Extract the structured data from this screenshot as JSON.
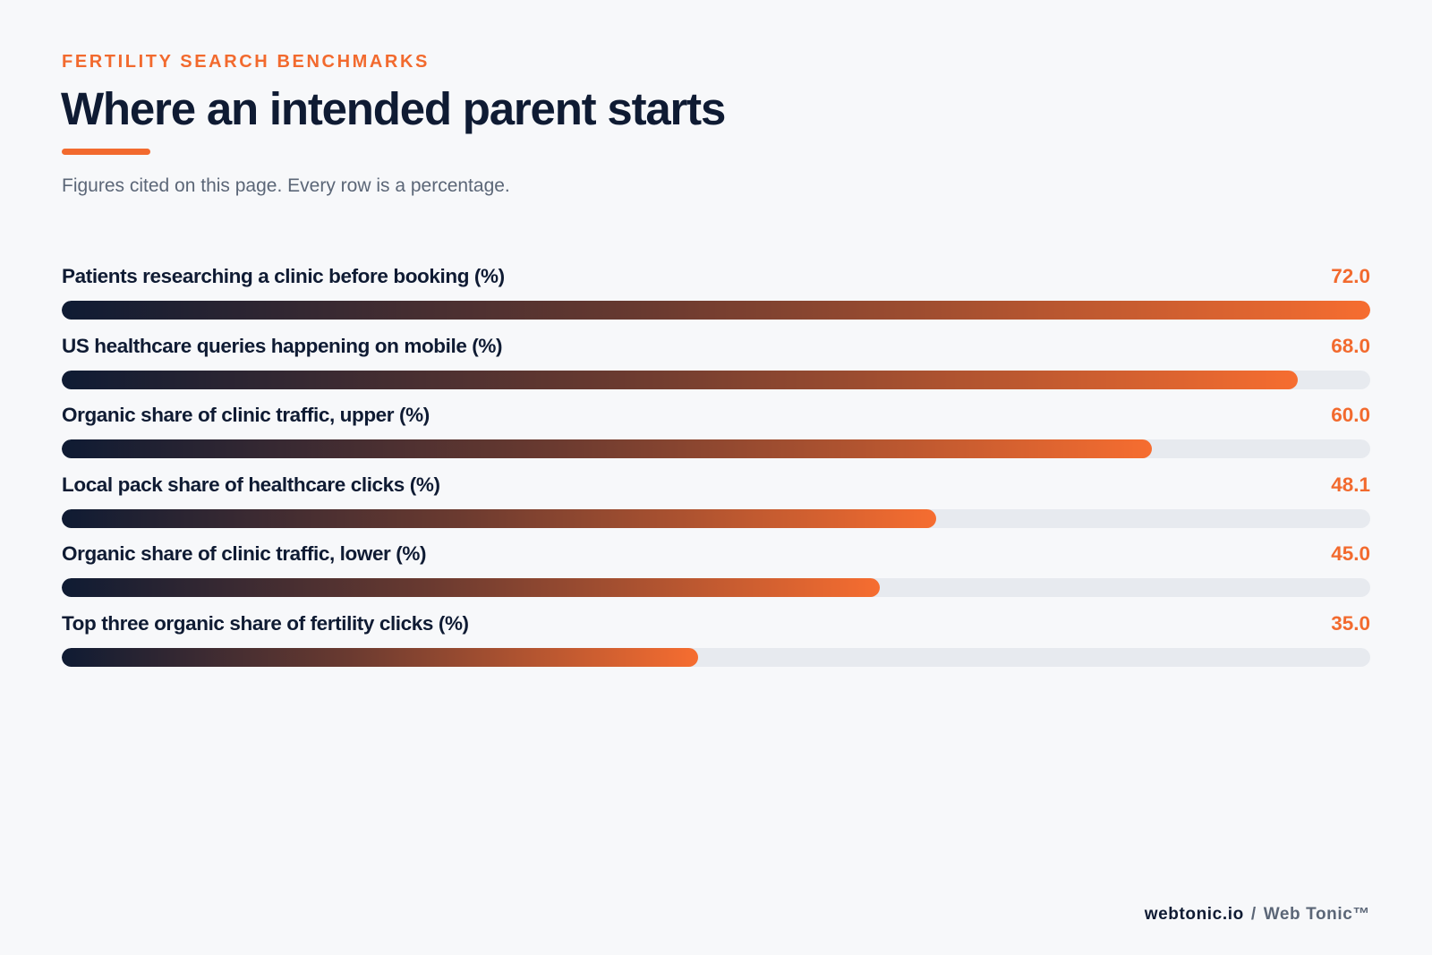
{
  "header": {
    "eyebrow": "FERTILITY SEARCH BENCHMARKS",
    "title": "Where an intended parent starts",
    "subtitle": "Figures cited on this page. Every row is a percentage."
  },
  "footer": {
    "site": "webtonic.io",
    "separator": "/",
    "brand": "Web Tonic™"
  },
  "colors": {
    "accent": "#f26a2e",
    "ink": "#0f1b33",
    "track": "#e7eaef"
  },
  "chart_data": {
    "type": "bar",
    "orientation": "horizontal",
    "xlim": [
      0,
      72
    ],
    "grid": false,
    "categories": [
      "Patients researching a clinic before booking (%)",
      "US healthcare queries happening on mobile (%)",
      "Organic share of clinic traffic, upper (%)",
      "Local pack share of healthcare clicks (%)",
      "Organic share of clinic traffic, lower (%)",
      "Top three organic share of fertility clicks (%)"
    ],
    "values": [
      72.0,
      68.0,
      60.0,
      48.1,
      45.0,
      35.0
    ],
    "value_labels": [
      "72.0",
      "68.0",
      "60.0",
      "48.1",
      "45.0",
      "35.0"
    ]
  }
}
